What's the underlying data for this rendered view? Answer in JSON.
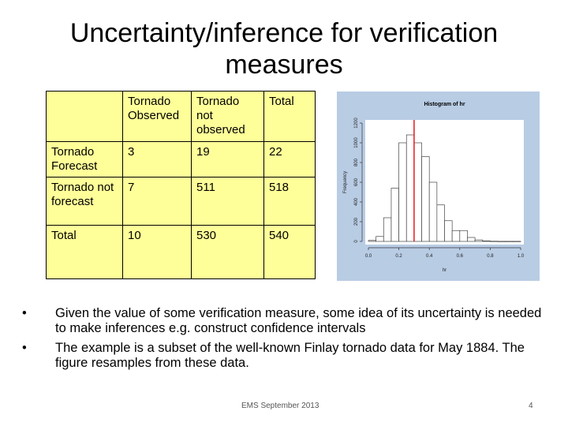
{
  "slide": {
    "title": "Uncertainty/inference for verification measures",
    "footer": "EMS September 2013",
    "page_number": "4"
  },
  "table": {
    "header": [
      "",
      "Tornado Observed",
      "Tornado not observed",
      "Total"
    ],
    "rows": [
      [
        "Tornado Forecast",
        "3",
        "19",
        "22"
      ],
      [
        "Tornado not forecast",
        "7",
        "511",
        "518"
      ],
      [
        "Total",
        "10",
        "530",
        "540"
      ]
    ]
  },
  "bullets": [
    "Given the value of some verification measure, some idea of its uncertainty is needed to make inferences e.g. construct confidence intervals",
    "The example is a subset of the well-known Finlay tornado data for May 1884. The figure resamples from these data."
  ],
  "chart_data": {
    "type": "bar",
    "title": "Histogram of hr",
    "xlabel": "hr",
    "ylabel": "Frequency",
    "xlim": [
      0.0,
      1.0
    ],
    "ylim": [
      0,
      1200
    ],
    "x_ticks": [
      "0.0",
      "0.2",
      "0.4",
      "0.6",
      "0.8",
      "1.0"
    ],
    "y_ticks": [
      "0",
      "200",
      "400",
      "600",
      "800",
      "1000",
      "1200"
    ],
    "bin_edges": [
      0.0,
      0.05,
      0.1,
      0.15,
      0.2,
      0.25,
      0.3,
      0.35,
      0.4,
      0.45,
      0.5,
      0.55,
      0.6,
      0.65,
      0.7,
      0.75,
      0.8,
      0.85,
      0.9,
      0.95,
      1.0
    ],
    "counts": [
      10,
      50,
      240,
      540,
      1000,
      1080,
      1000,
      860,
      600,
      370,
      210,
      110,
      110,
      40,
      15,
      5,
      2,
      1,
      1,
      1
    ],
    "reference_line_x": 0.3,
    "reference_line_color": "#e41a1c",
    "background_color": "#b8cce4",
    "grid": false
  }
}
